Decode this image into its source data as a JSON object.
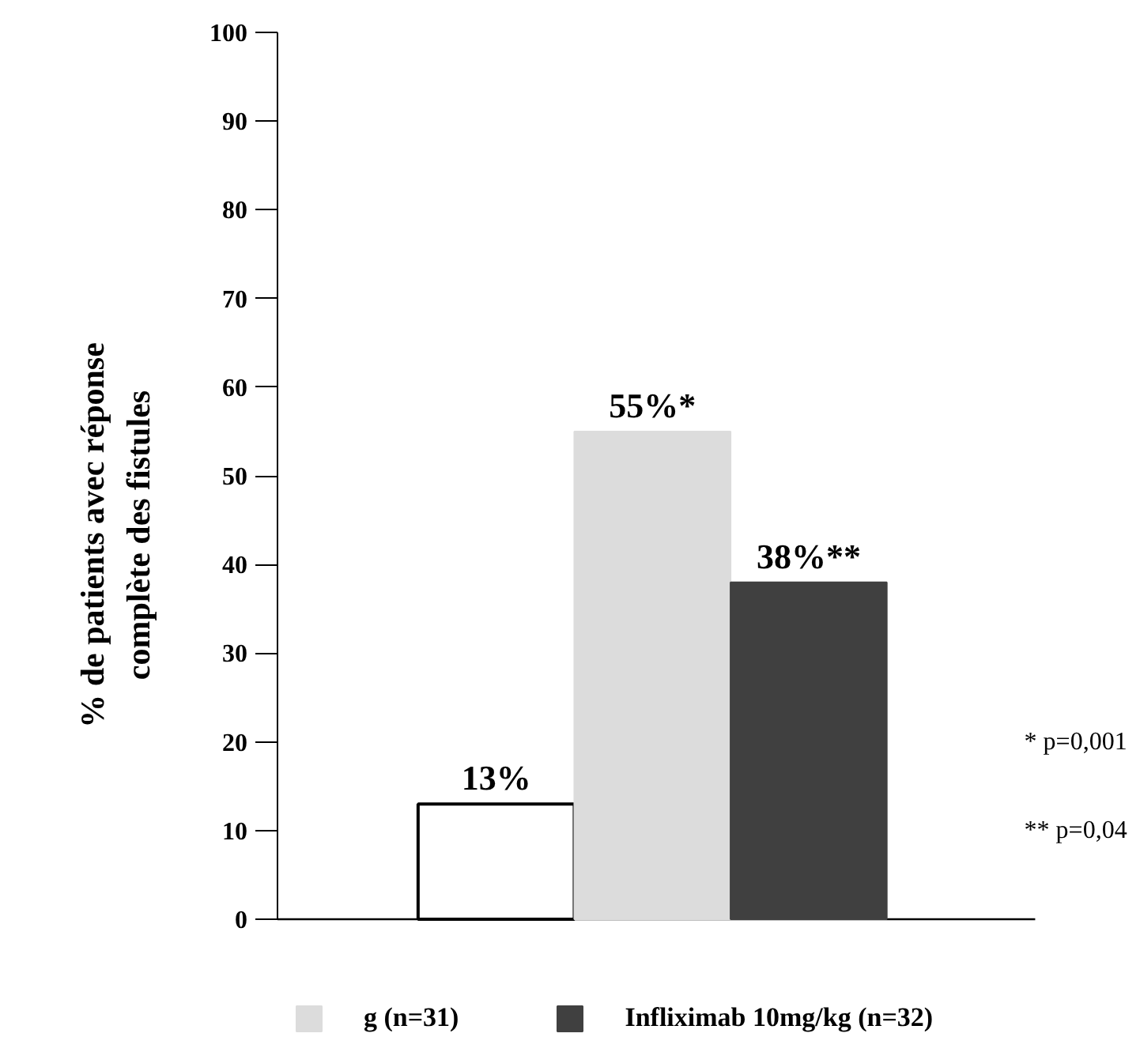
{
  "chart_data": {
    "type": "bar",
    "ylabel": "% de patients avec réponse complète des fistules",
    "categories": [
      null
    ],
    "series": [
      {
        "color": "#ffffff",
        "values": [
          13
        ],
        "value_labels": [
          "13%"
        ]
      },
      {
        "name": "g (n=31)",
        "color": "#dcdcdc",
        "values": [
          55
        ],
        "value_labels": [
          "55%*"
        ]
      },
      {
        "name": "Infliximab 10mg/kg (n=32)",
        "color": "#404040",
        "values": [
          38
        ],
        "value_labels": [
          "38%**"
        ]
      }
    ],
    "ylim": [
      0,
      100
    ],
    "yticks": [
      0,
      10,
      20,
      30,
      40,
      50,
      60,
      70,
      80,
      90,
      100
    ],
    "grid": false,
    "legend": "bottom",
    "annotations": [
      "* p=0,001",
      "** p=0,04"
    ]
  }
}
